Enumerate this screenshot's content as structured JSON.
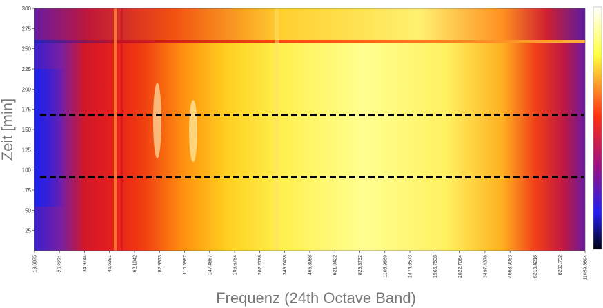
{
  "chart_data": {
    "type": "heatmap",
    "xlabel": "Frequenz (24th Octave Band)",
    "ylabel": "Zeit [min]",
    "xscale": "log",
    "xlim": [
      19.6875,
      11059.8694
    ],
    "xticks": [
      19.6875,
      26.2271,
      34.9744,
      46.6391,
      62.1942,
      82.9373,
      110.5987,
      147.4857,
      196.6754,
      262.2788,
      349.7438,
      466.3988,
      621.9422,
      829.3732,
      1105.9869,
      1474.8573,
      1966.7538,
      2622.7084,
      3497.4378,
      4663.9083,
      6219.4216,
      8293.732,
      11059.8694
    ],
    "ylim": [
      0,
      300
    ],
    "yticks": [
      25,
      50,
      75,
      100,
      125,
      150,
      175,
      200,
      225,
      250,
      275,
      300
    ],
    "hlines": [
      168,
      91
    ]
  }
}
